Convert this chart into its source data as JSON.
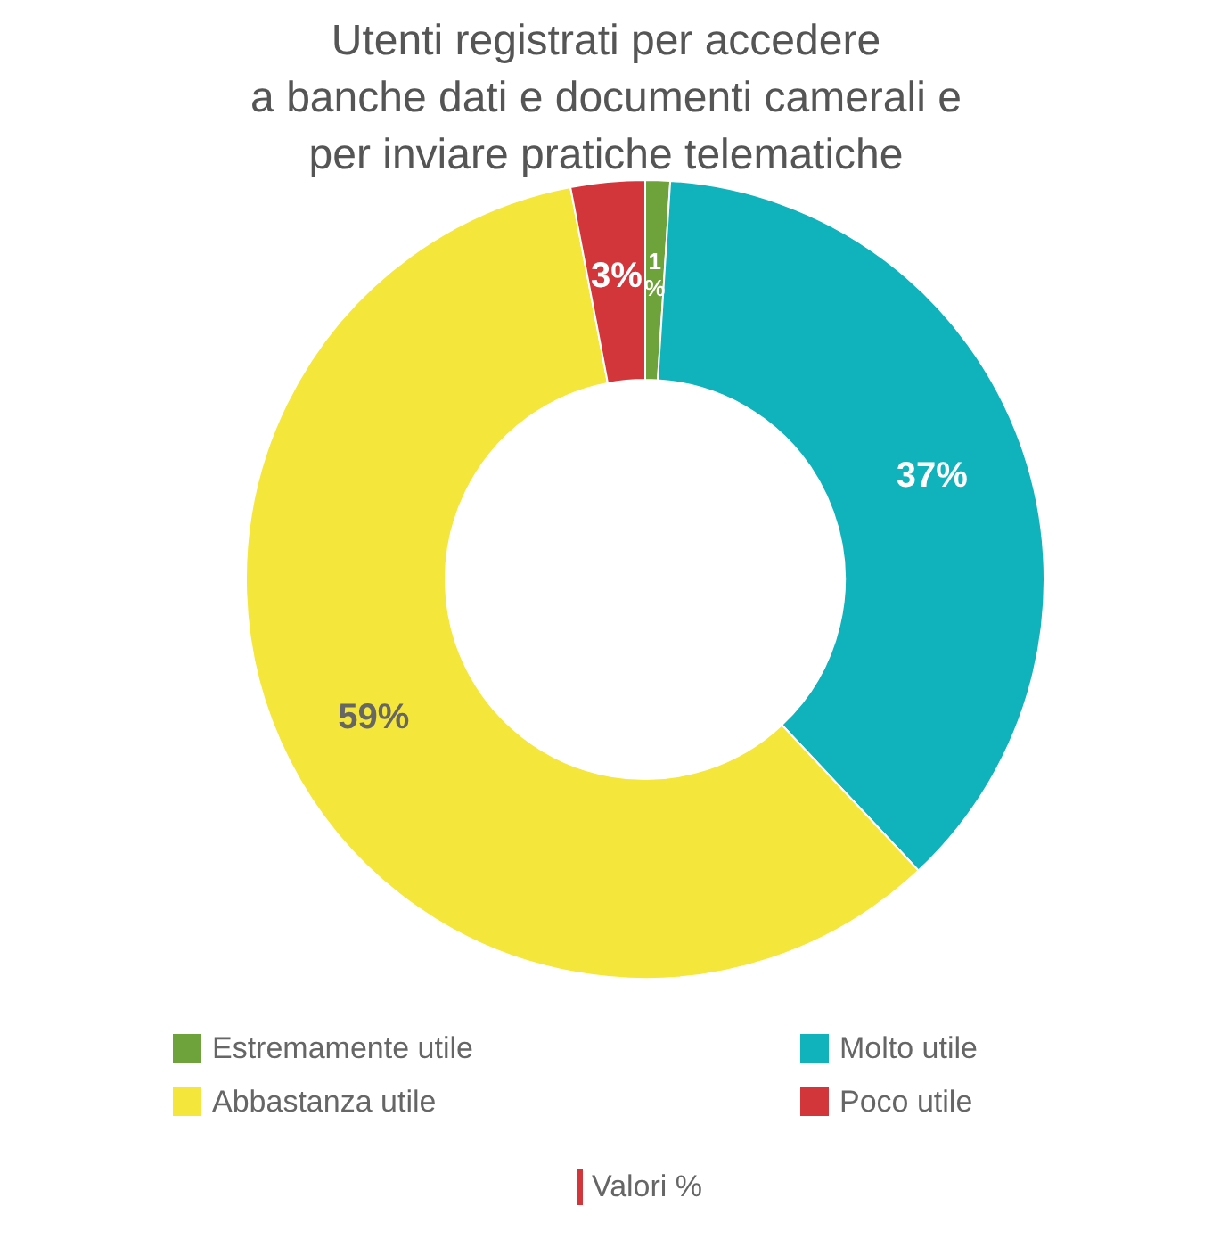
{
  "chart_data": {
    "type": "donut",
    "title": "Utenti registrati per accedere\na banche dati e documenti camerali e\nper inviare pratiche telematiche",
    "categories": [
      "Estremamente utile",
      "Molto utile",
      "Abbastanza utile",
      "Poco utile"
    ],
    "values": [
      1,
      37,
      59,
      3
    ],
    "colors": [
      "#6ea23a",
      "#10b3bc",
      "#f5e63c",
      "#d3363a"
    ],
    "value_labels": [
      "1%",
      "37%",
      "59%",
      "3%"
    ],
    "legend": "bottom",
    "annotations": [
      "Valori %"
    ]
  }
}
